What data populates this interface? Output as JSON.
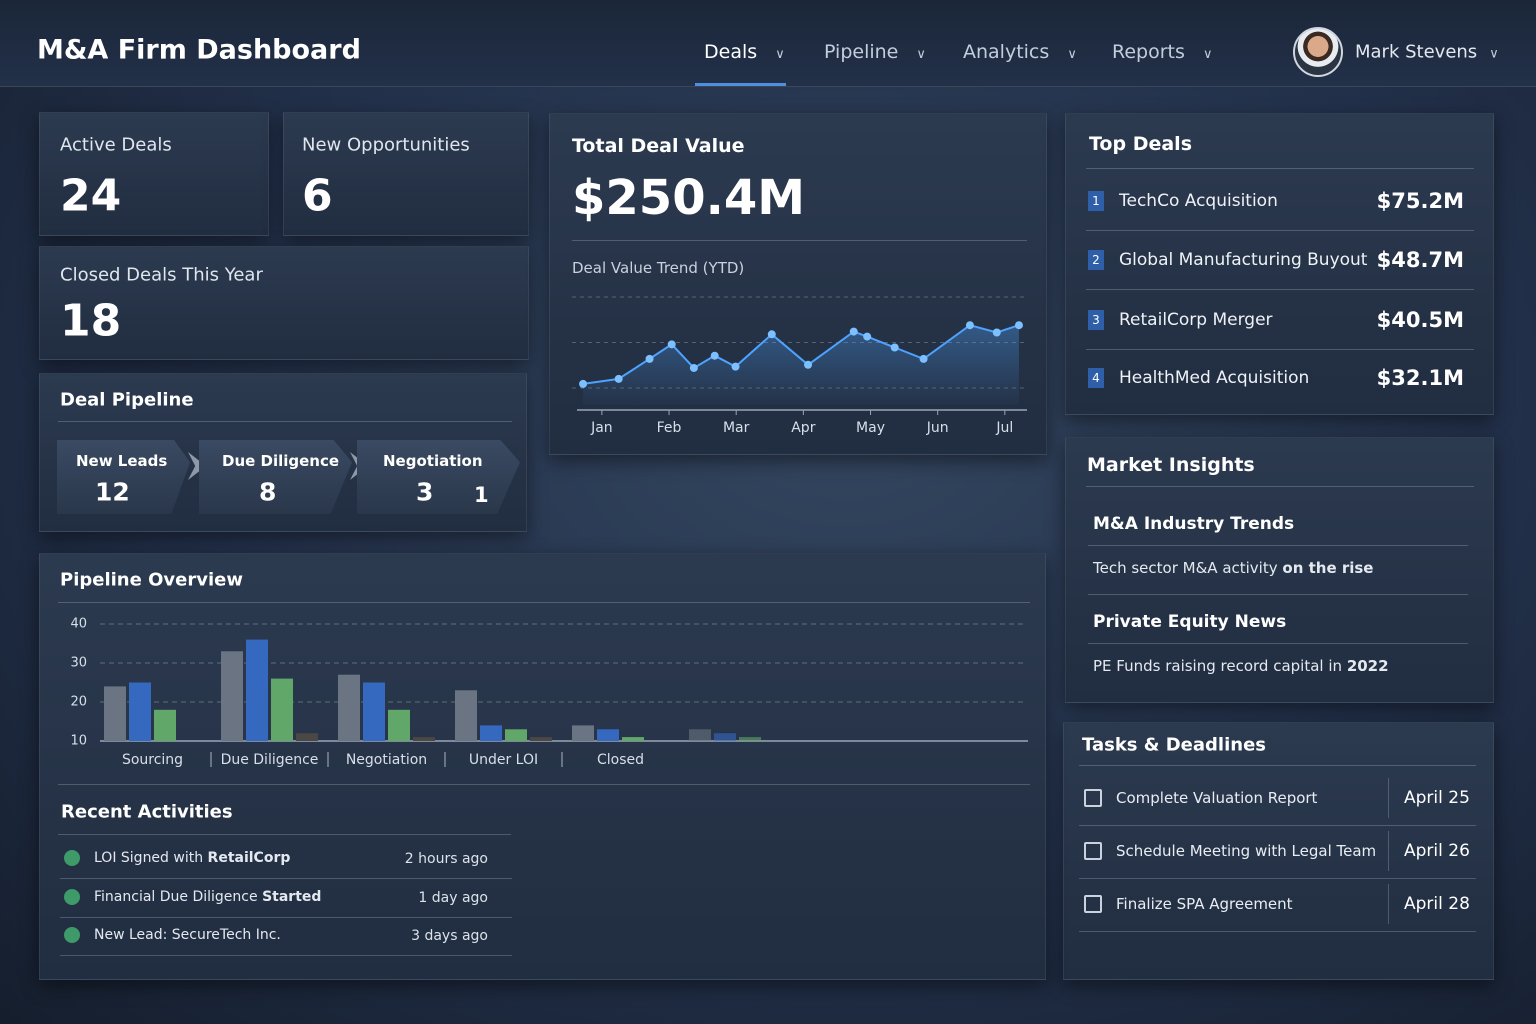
{
  "header": {
    "title": "M&A Firm Dashboard",
    "nav": [
      "Deals",
      "Pipeline",
      "Analytics",
      "Reports"
    ],
    "user": "Mark Stevens"
  },
  "kpis": [
    {
      "label": "Active Deals",
      "value": 24
    },
    {
      "label": "New Opportunities",
      "value": 6
    },
    {
      "label": "Closed Deals This Year",
      "value": 18
    }
  ],
  "deal_pipeline": {
    "title": "Deal Pipeline",
    "stages": [
      {
        "label": "New Leads",
        "value": 12
      },
      {
        "label": "Due Diligence",
        "value": 8
      },
      {
        "label": "Negotiation",
        "value": 3,
        "extra": 1
      }
    ]
  },
  "total_deal_value": {
    "title": "Total Deal Value",
    "value": "$250.4M"
  },
  "chart_data": [
    {
      "type": "line",
      "title": "Deal Value Trend (YTD)",
      "color": "#4da3ff",
      "x": [
        0.72,
        1.25,
        1.71,
        2.04,
        2.37,
        2.68,
        2.99,
        3.53,
        4.07,
        4.75,
        4.95,
        5.36,
        5.79,
        6.48,
        6.88,
        7.21
      ],
      "values": [
        0.9,
        2,
        6.4,
        9.6,
        4.4,
        7.1,
        4.7,
        11.8,
        5.1,
        12.4,
        11.3,
        8.9,
        6.4,
        13.8,
        12.2,
        13.8
      ],
      "xlim": [
        0.6,
        7.3
      ],
      "ylim": [
        0,
        20
      ],
      "xticks": [
        {
          "value": 1,
          "label": "Jan"
        },
        {
          "value": 2,
          "label": "Feb"
        },
        {
          "value": 3,
          "label": "Mar"
        },
        {
          "value": 4,
          "label": "Apr"
        },
        {
          "value": 5,
          "label": "May"
        },
        {
          "value": 6,
          "label": "Jun"
        },
        {
          "value": 7,
          "label": "Jul"
        }
      ]
    },
    {
      "type": "bar",
      "title": "Pipeline Overview",
      "categories": [
        "Sourcing",
        "Due Diligence",
        "Negotiation",
        "Under LOI",
        "Closed",
        null
      ],
      "series": [
        {
          "color": "#6b7482",
          "values": [
            24,
            33,
            27,
            23,
            14,
            13
          ]
        },
        {
          "color": "#3569c0",
          "values": [
            25,
            36,
            25,
            14,
            13,
            12
          ]
        },
        {
          "color": "#62a76a",
          "values": [
            18,
            26,
            18,
            13,
            11,
            11
          ]
        },
        {
          "color": "#4a4744",
          "values": [
            null,
            12,
            11,
            11,
            null,
            null
          ]
        }
      ],
      "ylim": [
        10,
        40
      ],
      "yticks": [
        10,
        20,
        30,
        40
      ],
      "grid": true
    }
  ],
  "top_deals": {
    "title": "Top Deals",
    "items": [
      {
        "rank": 1,
        "name": "TechCo Acquisition",
        "value": "$75.2M"
      },
      {
        "rank": 2,
        "name": "Global Manufacturing Buyout",
        "value": "$48.7M"
      },
      {
        "rank": 3,
        "name": "RetailCorp Merger",
        "value": "$40.5M"
      },
      {
        "rank": 4,
        "name": "HealthMed Acquisition",
        "value": "$32.1M"
      }
    ]
  },
  "market_insights": {
    "title": "Market Insights",
    "items": [
      {
        "heading": "M&A Industry Trends",
        "text": [
          "Tech sector M&A activity",
          "on the rise"
        ]
      },
      {
        "heading": "Private Equity News",
        "text": [
          "PE Funds raising record capital in",
          "2022"
        ]
      }
    ]
  },
  "recent_activities": {
    "title": "Recent Activities",
    "items": [
      {
        "text": [
          "LOI Signed with",
          "RetailCorp"
        ],
        "time": "2 hours ago"
      },
      {
        "text": [
          "Financial Due Diligence",
          "Started"
        ],
        "time": "1 day ago"
      },
      {
        "text": [
          "New Lead: SecureTech Inc."
        ],
        "time": "3 days ago"
      }
    ]
  },
  "tasks": {
    "title": "Tasks & Deadlines",
    "items": [
      {
        "task": "Complete Valuation Report",
        "date": "April 25"
      },
      {
        "task": "Schedule Meeting with Legal Team",
        "date": "April 26"
      },
      {
        "task": "Finalize SPA Agreement",
        "date": "April 28"
      }
    ]
  }
}
